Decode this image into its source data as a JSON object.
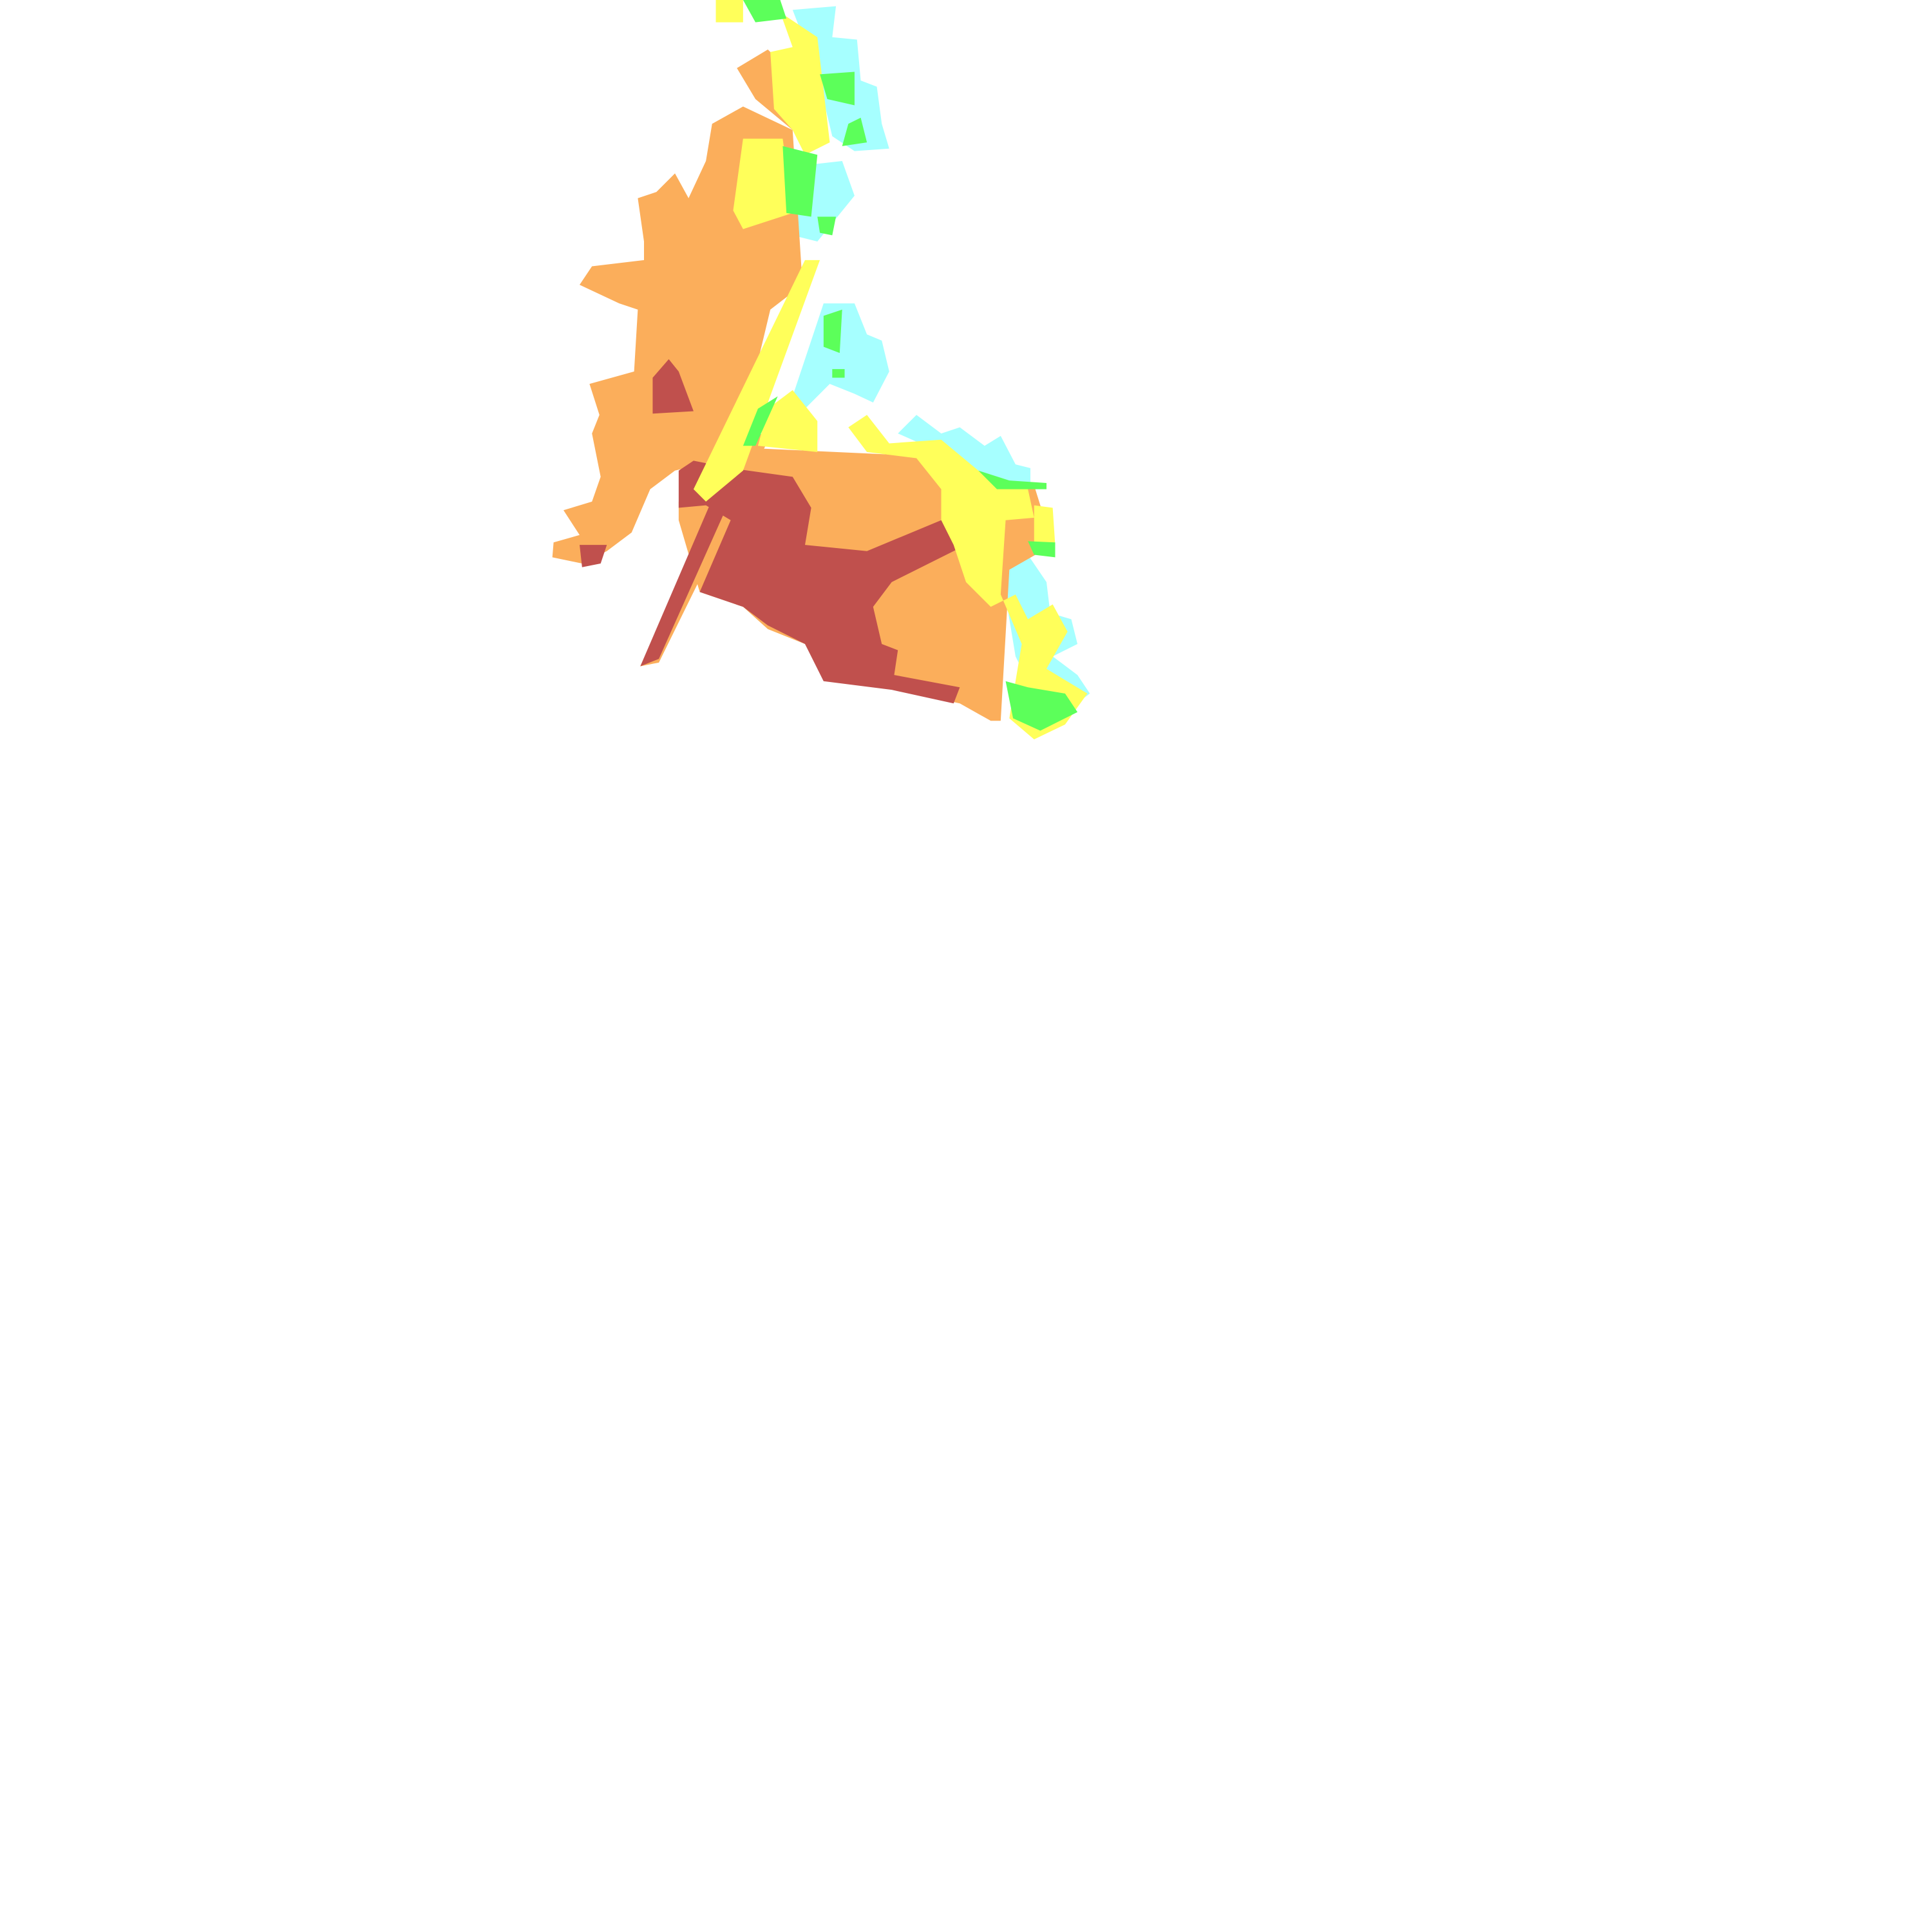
{
  "map": {
    "zone_colors": {
      "highest": "#C0504D",
      "high": "#FBAE5B",
      "medium": "#FFFF5A",
      "low": "#5CFF5A",
      "lowest": "#A6FFFF"
    },
    "background": "#FFFFFF"
  }
}
